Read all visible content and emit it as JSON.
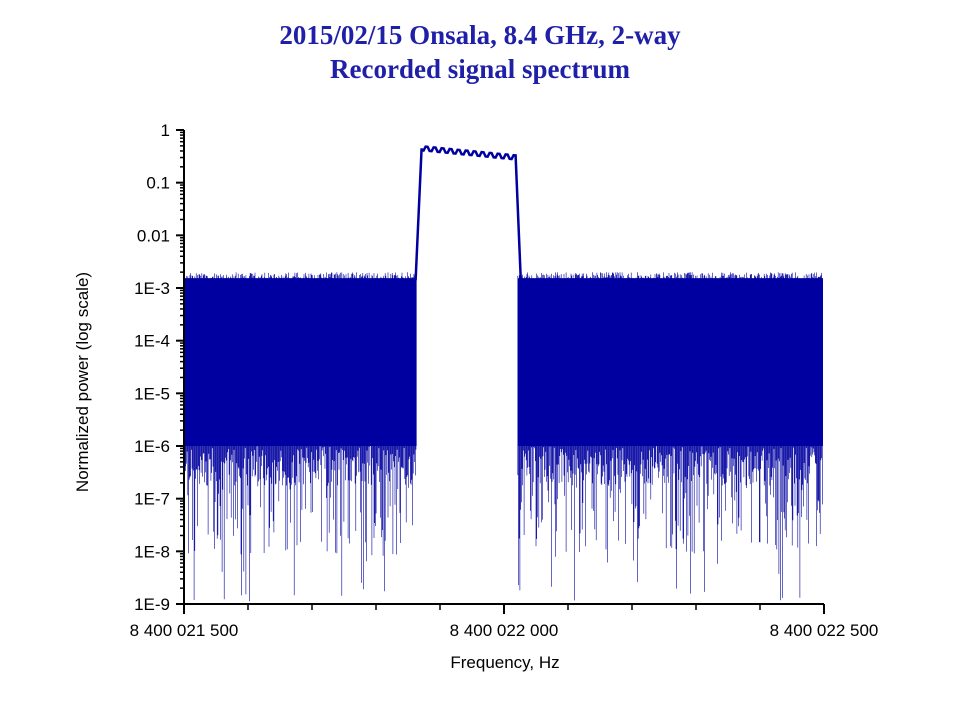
{
  "chart_data": {
    "type": "line",
    "title": "2015/02/15 Onsala, 8.4 GHz, 2-way",
    "subtitle": "Recorded signal spectrum",
    "xlabel": "Frequency, Hz",
    "ylabel": "Normalized power (log scale)",
    "xlim": [
      8400021500,
      8400022500
    ],
    "ylim": [
      1e-09,
      1
    ],
    "yscale": "log",
    "x_tick_labels": [
      "8 400 021 500",
      "8 400 022 000",
      "8 400 022 500"
    ],
    "x_tick_values": [
      8400021500,
      8400022000,
      8400022500
    ],
    "y_tick_labels": [
      "1",
      "0.1",
      "0.01",
      "1E-3",
      "1E-4",
      "1E-5",
      "1E-6",
      "1E-7",
      "1E-8",
      "1E-9"
    ],
    "y_tick_values": [
      1,
      0.1,
      0.01,
      0.001,
      0.0001,
      1e-05,
      1e-06,
      1e-07,
      1e-08,
      1e-09
    ],
    "grid": false,
    "series": [
      {
        "color": "#0000a0",
        "segments": [
          {
            "x_range": [
              8400021500,
              8400021865
            ],
            "y_envelope_max": 0.002,
            "y_envelope_typical_min": 1e-06,
            "y_spikes_min": 1e-09
          },
          {
            "x_range": [
              8400021865,
              8400022020
            ],
            "y_level_start": 0.45,
            "y_level_end": 0.3
          },
          {
            "x_range": [
              8400022020,
              8400022500
            ],
            "y_envelope_max": 0.002,
            "y_envelope_typical_min": 1e-06,
            "y_spikes_min": 1e-09
          }
        ]
      }
    ]
  }
}
